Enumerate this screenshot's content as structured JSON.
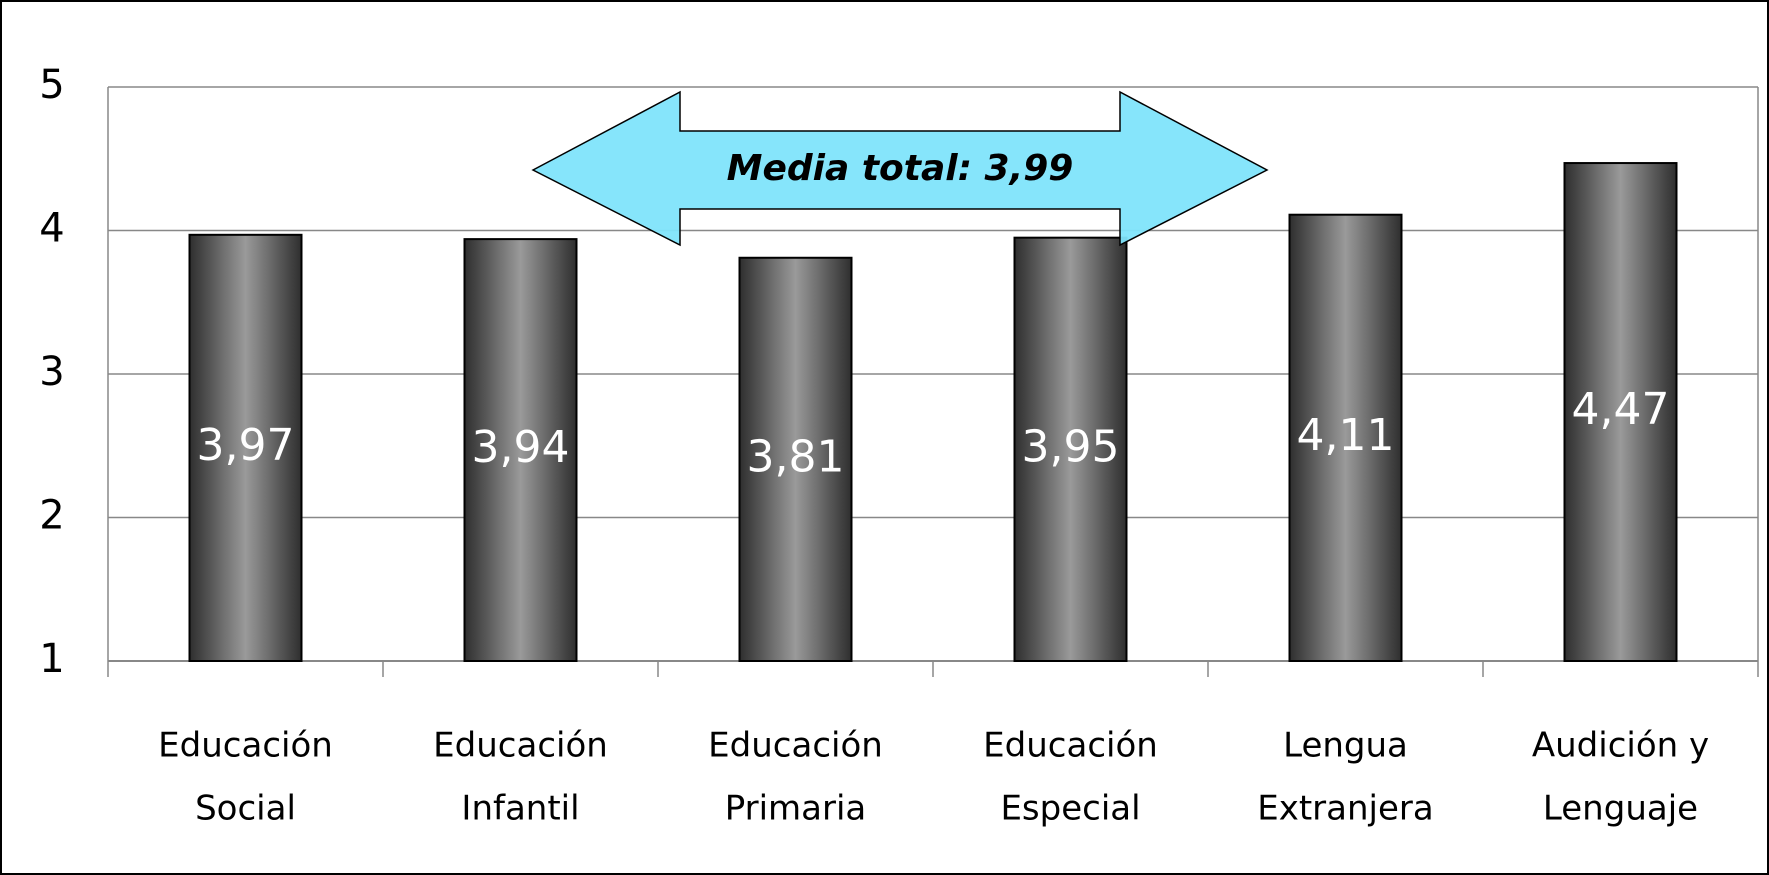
{
  "chart_data": {
    "type": "bar",
    "categories": [
      [
        "Educación",
        "Social"
      ],
      [
        "Educación",
        "Infantil"
      ],
      [
        "Educación",
        "Primaria"
      ],
      [
        "Educación",
        "Especial"
      ],
      [
        "Lengua",
        "Extranjera"
      ],
      [
        "Audición y",
        "Lenguaje"
      ]
    ],
    "values": [
      3.97,
      3.94,
      3.81,
      3.95,
      4.11,
      4.47
    ],
    "value_labels": [
      "3,97",
      "3,94",
      "3,81",
      "3,95",
      "4,11",
      "4,47"
    ],
    "annotation": "Media total: 3,99",
    "color": "#555555",
    "ylim": [
      1,
      5
    ],
    "yticks": [
      1,
      2,
      3,
      4,
      5
    ],
    "grid": true
  }
}
